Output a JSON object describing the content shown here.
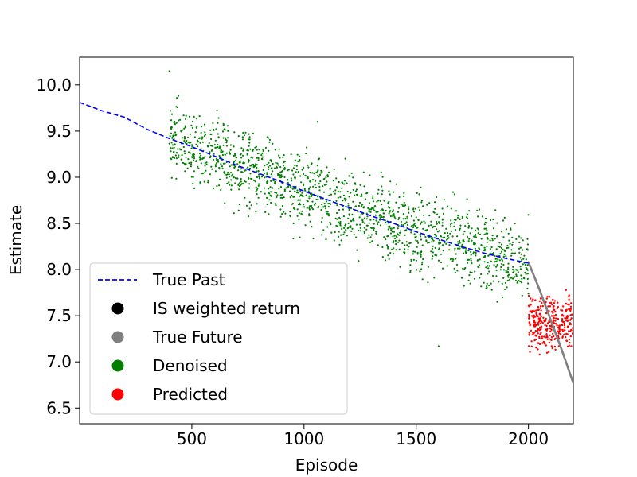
{
  "chart_data": {
    "type": "scatter",
    "title": "",
    "xlabel": "Episode",
    "ylabel": "Estimate",
    "xlim": [
      0,
      2200
    ],
    "ylim": [
      6.33,
      10.3
    ],
    "xticks": [
      500,
      1000,
      1500,
      2000
    ],
    "xtick_labels": [
      "500",
      "1000",
      "1500",
      "2000"
    ],
    "yticks": [
      6.5,
      7.0,
      7.5,
      8.0,
      8.5,
      9.0,
      9.5,
      10.0
    ],
    "ytick_labels": [
      "6.5",
      "7.0",
      "7.5",
      "8.0",
      "8.5",
      "9.0",
      "9.5",
      "10.0"
    ],
    "grid": false,
    "legend_position": "lower-left",
    "series": [
      {
        "name": "True Past",
        "style": "dashed-line",
        "color": "#0000ff",
        "points": [
          [
            0,
            9.81
          ],
          [
            100,
            9.72
          ],
          [
            200,
            9.65
          ],
          [
            300,
            9.52
          ],
          [
            400,
            9.42
          ],
          [
            500,
            9.33
          ],
          [
            600,
            9.23
          ],
          [
            700,
            9.13
          ],
          [
            800,
            9.04
          ],
          [
            900,
            8.95
          ],
          [
            1000,
            8.85
          ],
          [
            1100,
            8.76
          ],
          [
            1200,
            8.67
          ],
          [
            1300,
            8.58
          ],
          [
            1400,
            8.5
          ],
          [
            1500,
            8.41
          ],
          [
            1600,
            8.33
          ],
          [
            1700,
            8.25
          ],
          [
            1800,
            8.18
          ],
          [
            1900,
            8.12
          ],
          [
            2000,
            8.07
          ]
        ]
      },
      {
        "name": "IS weighted return",
        "style": "marker",
        "color": "#000000",
        "points": []
      },
      {
        "name": "True Future",
        "style": "dots",
        "color": "#808080",
        "points": [
          [
            2000,
            8.08
          ],
          [
            2050,
            7.78
          ],
          [
            2100,
            7.45
          ],
          [
            2150,
            7.12
          ],
          [
            2200,
            6.77
          ]
        ]
      },
      {
        "name": "Denoised",
        "style": "dots",
        "color": "#008000",
        "x_range": [
          400,
          2000
        ],
        "trend_points": [
          [
            400,
            9.42
          ],
          [
            1000,
            8.85
          ],
          [
            1500,
            8.41
          ],
          [
            2000,
            8.07
          ]
        ],
        "spread": 0.3,
        "count": 1600,
        "notable_points": [
          [
            400,
            10.15
          ],
          [
            440,
            9.88
          ],
          [
            1060,
            9.6
          ],
          [
            1600,
            7.17
          ]
        ]
      },
      {
        "name": "Predicted",
        "style": "dots",
        "color": "#ff0000",
        "x_range": [
          2000,
          2200
        ],
        "center": 7.42,
        "spread": 0.2,
        "count": 300
      }
    ]
  },
  "legend": {
    "items": [
      {
        "label": "True Past",
        "color": "#0000ff",
        "marker": "dashed-line"
      },
      {
        "label": "IS weighted return",
        "color": "#000000",
        "marker": "circle"
      },
      {
        "label": "True Future",
        "color": "#808080",
        "marker": "circle"
      },
      {
        "label": "Denoised",
        "color": "#008000",
        "marker": "circle"
      },
      {
        "label": "Predicted",
        "color": "#ff0000",
        "marker": "circle"
      }
    ]
  }
}
